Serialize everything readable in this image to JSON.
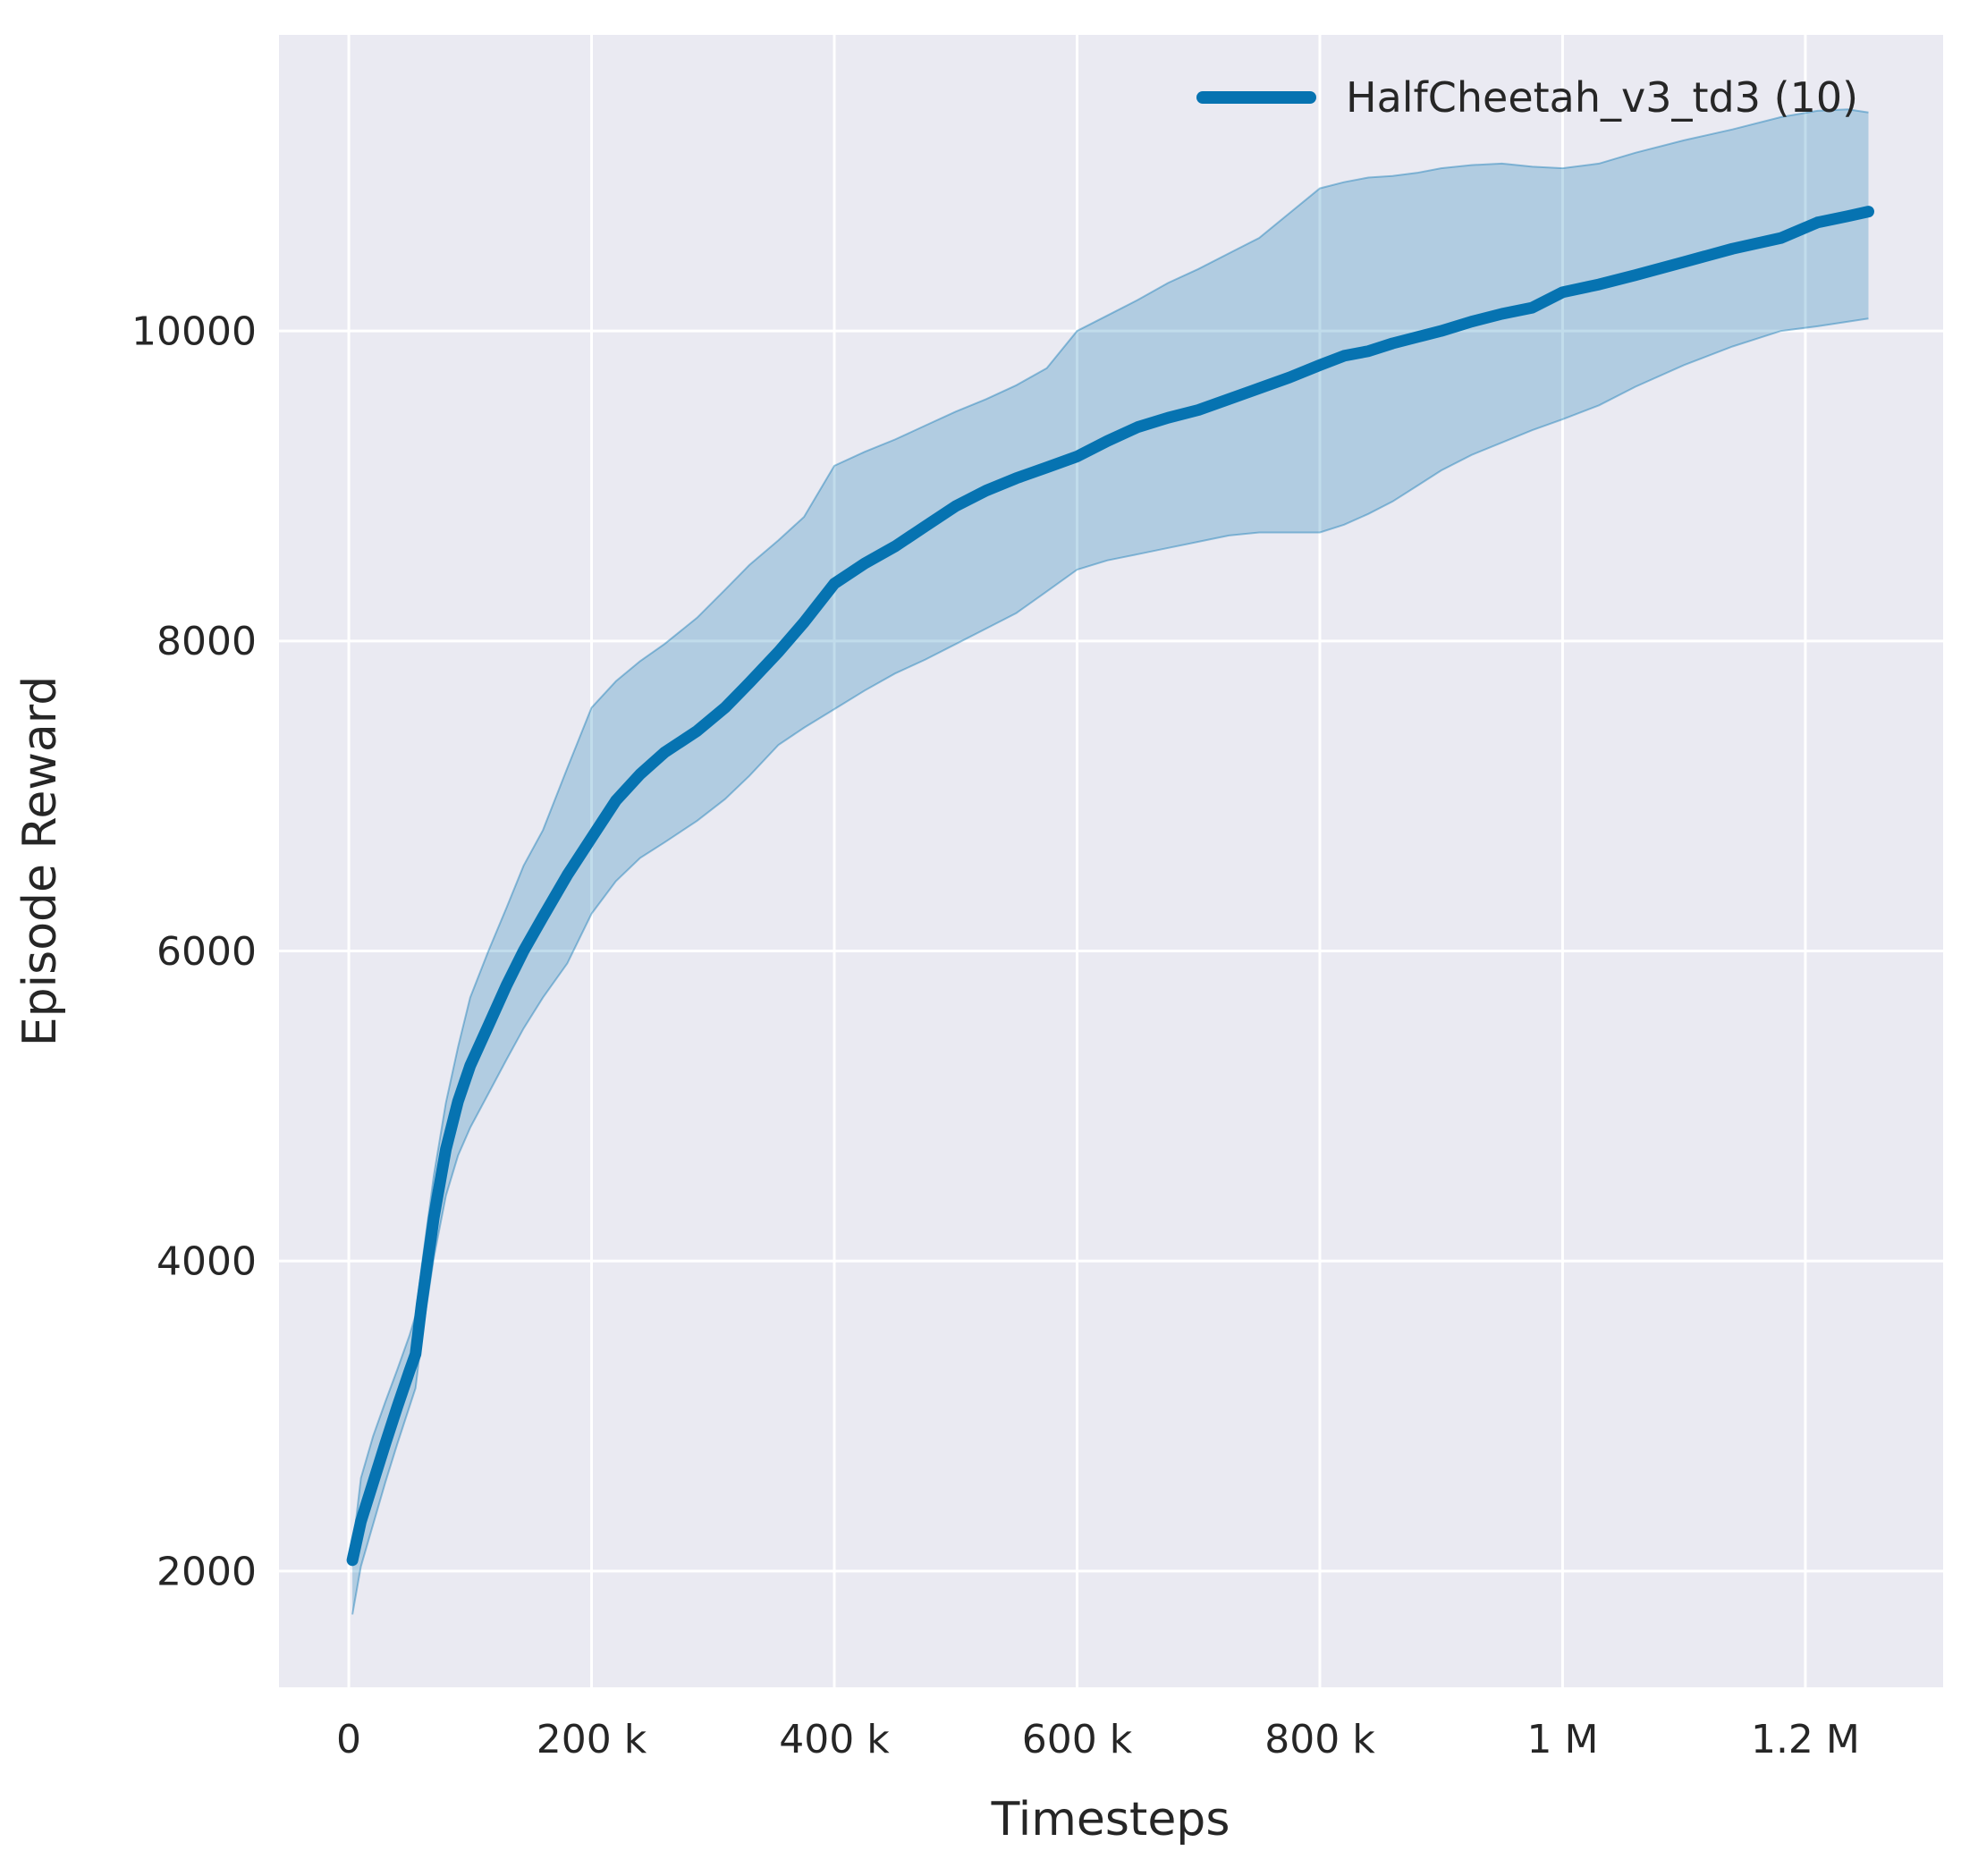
{
  "colors": {
    "figure_bg": "#ffffff",
    "plot_bg": "#eaeaf2",
    "grid": "#ffffff",
    "series_line": "#0673b1",
    "band_fill": "rgba(6,115,177,0.25)",
    "band_edge": "rgba(6,115,177,0.40)",
    "text": "#262626"
  },
  "chart_data": {
    "type": "line",
    "title": "",
    "xlabel": "Timesteps",
    "ylabel": "Episode Reward",
    "grid": true,
    "legend_position": "upper-right",
    "x_domain": [
      -57500,
      1313500
    ],
    "y_domain": [
      1250,
      11910
    ],
    "x_ticks": [
      {
        "value": 0,
        "label": "0"
      },
      {
        "value": 200000,
        "label": "200 k"
      },
      {
        "value": 400000,
        "label": "400 k"
      },
      {
        "value": 600000,
        "label": "600 k"
      },
      {
        "value": 800000,
        "label": "800 k"
      },
      {
        "value": 1000000,
        "label": "1 M"
      },
      {
        "value": 1200000,
        "label": "1.2 M"
      }
    ],
    "y_ticks": [
      {
        "value": 2000,
        "label": "2000"
      },
      {
        "value": 4000,
        "label": "4000"
      },
      {
        "value": 6000,
        "label": "6000"
      },
      {
        "value": 8000,
        "label": "8000"
      },
      {
        "value": 10000,
        "label": "10000"
      }
    ],
    "legend": [
      {
        "label": "HalfCheetah_v3_td3 (10)",
        "color": "#0673b1"
      }
    ],
    "series": [
      {
        "name": "HalfCheetah_v3_td3 (10)",
        "color": "#0673b1",
        "x": [
          3000,
          10000,
          20000,
          30000,
          40000,
          50000,
          55000,
          60000,
          70000,
          80000,
          90000,
          100000,
          115000,
          130000,
          144000,
          160000,
          180000,
          200000,
          220000,
          240000,
          260000,
          287000,
          310000,
          330000,
          354000,
          375000,
          400000,
          425000,
          450000,
          475000,
          500000,
          525000,
          550000,
          575000,
          600000,
          625000,
          650000,
          675000,
          700000,
          725000,
          750000,
          775000,
          800000,
          820000,
          840000,
          860000,
          880000,
          900000,
          925000,
          950000,
          975000,
          1000000,
          1030000,
          1060000,
          1100000,
          1140000,
          1180000,
          1210000,
          1235000,
          1252000
        ],
        "mean": [
          2070,
          2320,
          2570,
          2820,
          3060,
          3290,
          3400,
          3720,
          4280,
          4720,
          5030,
          5260,
          5520,
          5780,
          6000,
          6220,
          6490,
          6730,
          6970,
          7140,
          7280,
          7420,
          7570,
          7730,
          7930,
          8120,
          8370,
          8500,
          8610,
          8740,
          8870,
          8970,
          9050,
          9120,
          9190,
          9290,
          9380,
          9440,
          9490,
          9560,
          9630,
          9700,
          9780,
          9840,
          9870,
          9920,
          9960,
          10000,
          10060,
          10110,
          10150,
          10250,
          10300,
          10360,
          10445,
          10530,
          10600,
          10700,
          10740,
          10770
        ],
        "lower": [
          1720,
          2030,
          2300,
          2570,
          2820,
          3060,
          3180,
          3500,
          4020,
          4420,
          4680,
          4860,
          5080,
          5300,
          5500,
          5700,
          5920,
          6240,
          6450,
          6600,
          6700,
          6840,
          6980,
          7130,
          7330,
          7440,
          7560,
          7680,
          7790,
          7880,
          7980,
          8080,
          8180,
          8320,
          8460,
          8520,
          8560,
          8600,
          8640,
          8680,
          8700,
          8700,
          8700,
          8750,
          8820,
          8900,
          9000,
          9100,
          9200,
          9280,
          9360,
          9430,
          9520,
          9640,
          9780,
          9900,
          10000,
          10030,
          10060,
          10080
        ],
        "upper": [
          2130,
          2600,
          2870,
          3090,
          3300,
          3520,
          3650,
          3960,
          4550,
          5020,
          5380,
          5700,
          6000,
          6280,
          6550,
          6780,
          7180,
          7570,
          7740,
          7870,
          7980,
          8150,
          8330,
          8490,
          8650,
          8800,
          9130,
          9220,
          9300,
          9390,
          9480,
          9560,
          9650,
          9760,
          10000,
          10100,
          10200,
          10310,
          10400,
          10500,
          10600,
          10760,
          10920,
          10960,
          10990,
          11000,
          11020,
          11050,
          11070,
          11080,
          11060,
          11050,
          11080,
          11150,
          11230,
          11300,
          11380,
          11420,
          11430,
          11410
        ]
      }
    ]
  }
}
